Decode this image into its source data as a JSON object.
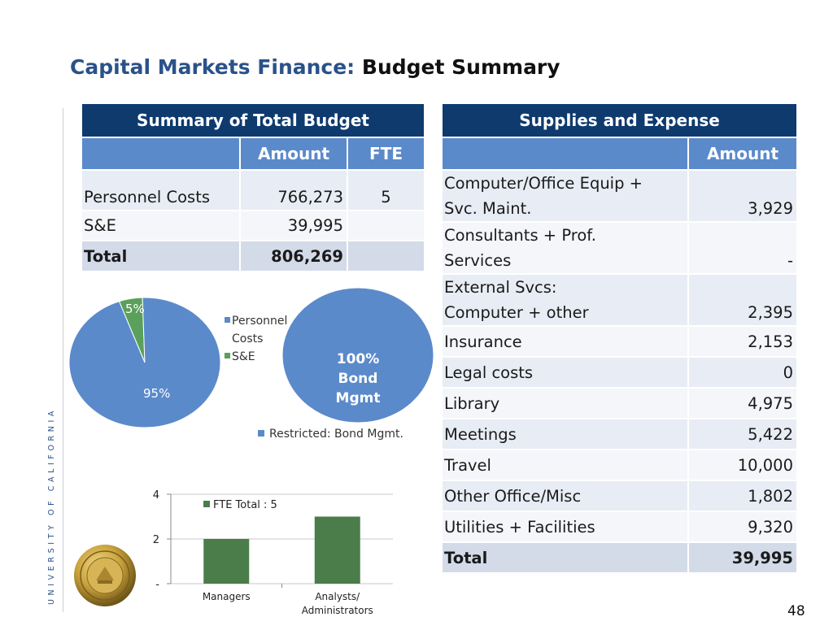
{
  "title": {
    "part1": "Capital Markets Finance:",
    "part2": "Budget Summary"
  },
  "side_text": "UNIVERSITY OF CALIFORNIA",
  "page_number": "48",
  "summary_table": {
    "heading": "Summary of Total Budget",
    "columns": [
      "",
      "Amount",
      "FTE"
    ],
    "rows": [
      {
        "label": "Personnel Costs",
        "amount": "766,273",
        "fte": "5"
      },
      {
        "label": "S&E",
        "amount": "39,995",
        "fte": ""
      }
    ],
    "total": {
      "label": "Total",
      "amount": "806,269",
      "fte": ""
    }
  },
  "supplies_table": {
    "heading": "Supplies and Expense",
    "columns": [
      "",
      "Amount"
    ],
    "rows": [
      {
        "label_line1": "Computer/Office Equip +",
        "label_line2": "Svc. Maint.",
        "amount": "3,929"
      },
      {
        "label_line1": "Consultants + Prof.",
        "label_line2": "Services",
        "amount": "-"
      },
      {
        "label_line1": "External Svcs:",
        "label_line2": "Computer + other",
        "amount": "2,395"
      },
      {
        "label_line1": "Insurance",
        "label_line2": "",
        "amount": "2,153"
      },
      {
        "label_line1": "Legal costs",
        "label_line2": "",
        "amount": "0"
      },
      {
        "label_line1": "Library",
        "label_line2": "",
        "amount": "4,975"
      },
      {
        "label_line1": "Meetings",
        "label_line2": "",
        "amount": "5,422"
      },
      {
        "label_line1": "Travel",
        "label_line2": "",
        "amount": "10,000"
      },
      {
        "label_line1": "Other Office/Misc",
        "label_line2": "",
        "amount": "1,802"
      },
      {
        "label_line1": "Utilities + Facilities",
        "label_line2": "",
        "amount": "9,320"
      }
    ],
    "total": {
      "label": "Total",
      "amount": "39,995"
    }
  },
  "chart_data": [
    {
      "type": "pie",
      "labels": [
        "Personnel Costs",
        "S&E"
      ],
      "values": [
        95,
        5
      ],
      "data_labels": [
        "95%",
        "5%"
      ],
      "legend": [
        "Personnel Costs",
        "S&E"
      ],
      "legend_display_lines": [
        "Personnel",
        "Costs",
        "S&E"
      ],
      "colors": [
        "#5b8acb",
        "#5aa05a"
      ],
      "legend_position": "right"
    },
    {
      "type": "pie",
      "labels": [
        "Restricted: Bond Mgmt."
      ],
      "values": [
        100
      ],
      "data_label_lines": [
        "100%",
        "Bond",
        "Mgmt"
      ],
      "legend": [
        "Restricted: Bond Mgmt."
      ],
      "colors": [
        "#5b8acb"
      ],
      "legend_position": "bottom"
    },
    {
      "type": "bar",
      "categories": [
        "Managers",
        "Analysts/ Administrators"
      ],
      "category_lines": [
        [
          "Managers"
        ],
        [
          "Analysts/",
          "Administrators"
        ]
      ],
      "series": [
        {
          "name": "FTE Total : 5",
          "values": [
            2,
            3
          ]
        }
      ],
      "ylim": [
        0,
        4
      ],
      "yticks": [
        0,
        2,
        4
      ],
      "ytick_labels": [
        "-",
        "2",
        "4"
      ],
      "grid": true,
      "legend_position": "top-left",
      "colors": [
        "#4a7d4a"
      ]
    }
  ]
}
